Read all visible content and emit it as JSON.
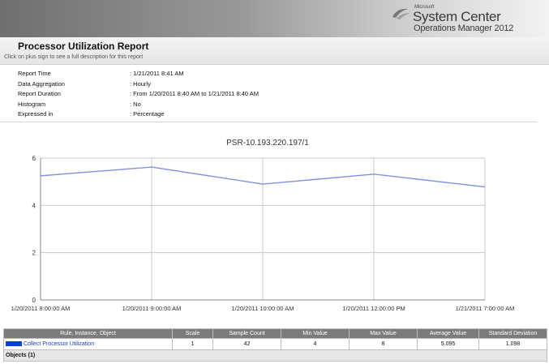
{
  "branding": {
    "vendor": "Microsoft",
    "product_line1": "System Center",
    "product_line2": "Operations Manager 2012"
  },
  "report": {
    "title": "Processor Utilization Report",
    "hint": "Click on plus sign to see a full description for this report"
  },
  "parameters": [
    {
      "label": "Report Time",
      "value": ": 1/21/2011 8:41 AM"
    },
    {
      "label": "Data Aggregation",
      "value": ": Hourly"
    },
    {
      "label": "Report Duration",
      "value": ": From  1/20/2011 8:40 AM  to  1/21/2011 8:40 AM"
    },
    {
      "label": "Histogram",
      "value": ": No"
    },
    {
      "label": "Expressed in",
      "value": ": Percentage"
    }
  ],
  "chart_data": {
    "type": "line",
    "title": "PSR-10.193.220.197/1",
    "categories": [
      "1/20/2011 8:00:00 AM",
      "1/20/2011 9:00:00 AM",
      "1/20/2011 10:00:00 AM",
      "1/20/2011 12:00:00 PM",
      "1/21/2011 7:00:00 AM"
    ],
    "series": [
      {
        "name": "Collect Processor Utilization",
        "values": [
          5.25,
          5.62,
          4.9,
          5.32,
          4.78
        ],
        "color": "#7f92e0"
      }
    ],
    "yticks": [
      "0",
      "2",
      "4",
      "6"
    ],
    "ylim": [
      0,
      6
    ],
    "grid": true
  },
  "table": {
    "headers": [
      "Rule, Instance, Object",
      "Scale",
      "Sample Count",
      "Min Value",
      "Max Value",
      "Average Value",
      "Standard Deviation"
    ],
    "rows": [
      {
        "rule": "Collect Processor Utilization",
        "scale": "1",
        "sample_count": "42",
        "min": "4",
        "max": "8",
        "average": "5.095",
        "std_dev": "1.098",
        "swatch_color": "#0a3fd6"
      }
    ],
    "objects_label": "Objects (1)"
  }
}
